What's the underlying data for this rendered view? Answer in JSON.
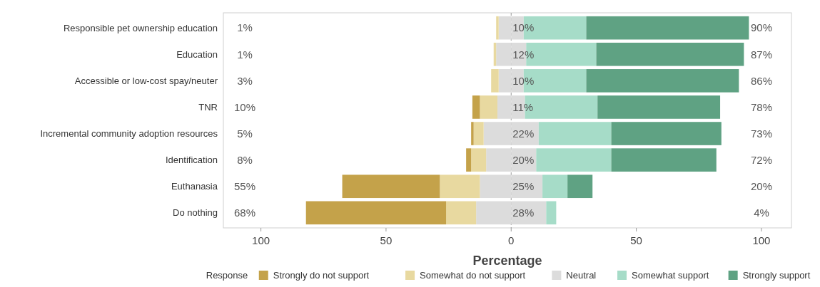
{
  "chart_data": {
    "type": "bar",
    "orientation": "horizontal",
    "stacked": true,
    "xlabel": "Percentage",
    "legend_title": "Response",
    "legend": "bottom",
    "categories": [
      "Responsible pet ownership education",
      "Education",
      "Accessible or low-cost spay/neuter",
      "TNR",
      "Incremental community adoption resources",
      "Identification",
      "Euthanasia",
      "Do nothing"
    ],
    "series": [
      {
        "name": "Neutral",
        "color": "#dcdcdc",
        "values": [
          -5,
          -6,
          -5,
          -5.5,
          -11,
          -10,
          -12.5,
          -14
        ]
      },
      {
        "name": "Somewhat do not support",
        "color": "#e8d9a0",
        "values": [
          -1,
          -1,
          -3,
          -7,
          -4,
          -6,
          -16,
          -12
        ]
      },
      {
        "name": "Strongly do not support",
        "color": "#c4a24a",
        "values": [
          0,
          0,
          0,
          -3,
          -1,
          -2,
          -39,
          -56
        ]
      },
      {
        "color": "#dcdcdc",
        "values": [
          5,
          6,
          5,
          5.5,
          11,
          10,
          12.5,
          14
        ]
      },
      {
        "name": "Somewhat support",
        "color": "#a6dcc8",
        "values": [
          25,
          28,
          25,
          29,
          29,
          30,
          10,
          4
        ]
      },
      {
        "name": "Strongly support",
        "color": "#5fa283",
        "values": [
          65,
          59,
          61,
          49,
          44,
          42,
          10,
          0
        ]
      }
    ],
    "xlim": [
      -115,
      112
    ],
    "xticks": [
      {
        "value": -100,
        "label": "100"
      },
      {
        "value": -50,
        "label": "50"
      },
      0,
      50,
      100
    ],
    "ref_lines": [
      {
        "axis": "x",
        "value": 0,
        "color": "#9a9a9a",
        "line_style": "dashed"
      }
    ],
    "annotations": [
      "1%",
      "1%",
      "3%",
      "10%",
      "5%",
      "8%",
      "55%",
      "68%",
      "10%",
      "12%",
      "10%",
      "11%",
      "22%",
      "20%",
      "25%",
      "28%",
      "90%",
      "87%",
      "86%",
      "78%",
      "73%",
      "72%",
      "20%",
      "4%"
    ]
  }
}
